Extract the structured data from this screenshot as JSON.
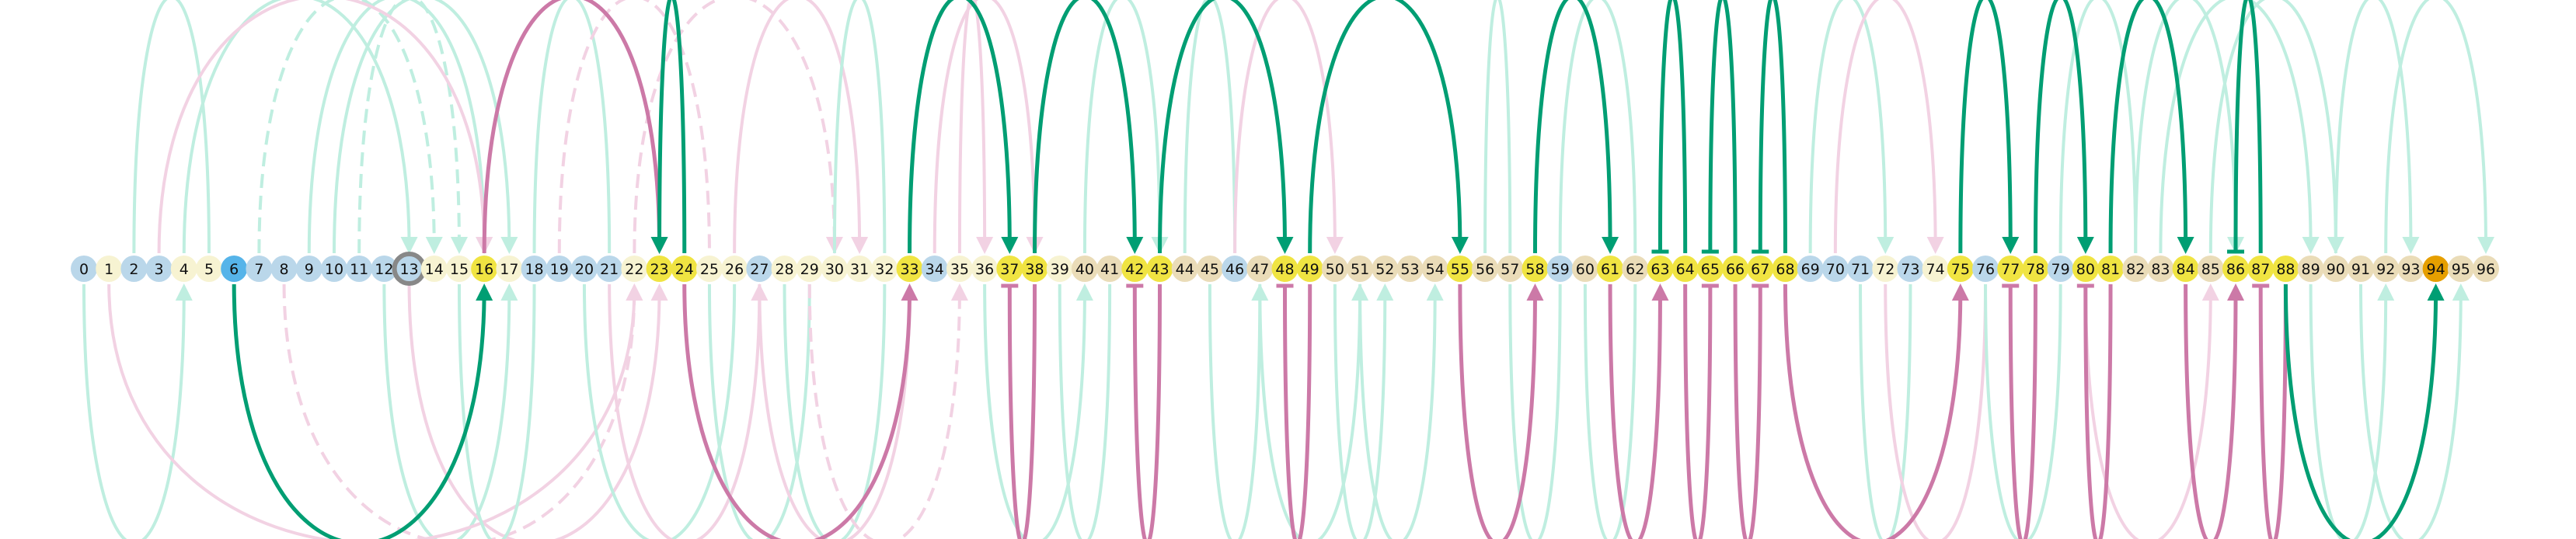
{
  "colors": {
    "node_yellow": "#f0e442",
    "node_light_blue": "#bad7ea",
    "node_pale_yellow": "#f7f3d2",
    "node_tan": "#eadcb8",
    "node_blue": "#56b4e9",
    "node_orange": "#e69f00",
    "ring_gray": "#888888",
    "arc_green": "#009e73",
    "arc_pink": "#cc79a7",
    "arc_green_faint": "#bfeee0",
    "arc_pink_faint": "#f2d2e3"
  },
  "nodes": [
    {
      "label": "0",
      "fill": "node_light_blue"
    },
    {
      "label": "1",
      "fill": "node_pale_yellow"
    },
    {
      "label": "2",
      "fill": "node_light_blue"
    },
    {
      "label": "3",
      "fill": "node_light_blue"
    },
    {
      "label": "4",
      "fill": "node_pale_yellow"
    },
    {
      "label": "5",
      "fill": "node_pale_yellow"
    },
    {
      "label": "6",
      "fill": "node_blue"
    },
    {
      "label": "7",
      "fill": "node_light_blue"
    },
    {
      "label": "8",
      "fill": "node_light_blue"
    },
    {
      "label": "9",
      "fill": "node_light_blue"
    },
    {
      "label": "10",
      "fill": "node_light_blue"
    },
    {
      "label": "11",
      "fill": "node_light_blue"
    },
    {
      "label": "12",
      "fill": "node_light_blue"
    },
    {
      "label": "13",
      "fill": "node_light_blue",
      "ring": true
    },
    {
      "label": "14",
      "fill": "node_pale_yellow"
    },
    {
      "label": "15",
      "fill": "node_pale_yellow"
    },
    {
      "label": "16",
      "fill": "node_yellow"
    },
    {
      "label": "17",
      "fill": "node_pale_yellow"
    },
    {
      "label": "18",
      "fill": "node_light_blue"
    },
    {
      "label": "19",
      "fill": "node_light_blue"
    },
    {
      "label": "20",
      "fill": "node_light_blue"
    },
    {
      "label": "21",
      "fill": "node_light_blue"
    },
    {
      "label": "22",
      "fill": "node_pale_yellow"
    },
    {
      "label": "23",
      "fill": "node_yellow"
    },
    {
      "label": "24",
      "fill": "node_yellow"
    },
    {
      "label": "25",
      "fill": "node_pale_yellow"
    },
    {
      "label": "26",
      "fill": "node_pale_yellow"
    },
    {
      "label": "27",
      "fill": "node_light_blue"
    },
    {
      "label": "28",
      "fill": "node_pale_yellow"
    },
    {
      "label": "29",
      "fill": "node_pale_yellow"
    },
    {
      "label": "30",
      "fill": "node_pale_yellow"
    },
    {
      "label": "31",
      "fill": "node_pale_yellow"
    },
    {
      "label": "32",
      "fill": "node_pale_yellow"
    },
    {
      "label": "33",
      "fill": "node_yellow"
    },
    {
      "label": "34",
      "fill": "node_light_blue"
    },
    {
      "label": "35",
      "fill": "node_pale_yellow"
    },
    {
      "label": "36",
      "fill": "node_pale_yellow"
    },
    {
      "label": "37",
      "fill": "node_yellow"
    },
    {
      "label": "38",
      "fill": "node_yellow"
    },
    {
      "label": "39",
      "fill": "node_pale_yellow"
    },
    {
      "label": "40",
      "fill": "node_tan"
    },
    {
      "label": "41",
      "fill": "node_tan"
    },
    {
      "label": "42",
      "fill": "node_yellow"
    },
    {
      "label": "43",
      "fill": "node_yellow"
    },
    {
      "label": "44",
      "fill": "node_tan"
    },
    {
      "label": "45",
      "fill": "node_tan"
    },
    {
      "label": "46",
      "fill": "node_light_blue"
    },
    {
      "label": "47",
      "fill": "node_tan"
    },
    {
      "label": "48",
      "fill": "node_yellow"
    },
    {
      "label": "49",
      "fill": "node_yellow"
    },
    {
      "label": "50",
      "fill": "node_tan"
    },
    {
      "label": "51",
      "fill": "node_tan"
    },
    {
      "label": "52",
      "fill": "node_tan"
    },
    {
      "label": "53",
      "fill": "node_tan"
    },
    {
      "label": "54",
      "fill": "node_tan"
    },
    {
      "label": "55",
      "fill": "node_yellow"
    },
    {
      "label": "56",
      "fill": "node_tan"
    },
    {
      "label": "57",
      "fill": "node_tan"
    },
    {
      "label": "58",
      "fill": "node_yellow"
    },
    {
      "label": "59",
      "fill": "node_light_blue"
    },
    {
      "label": "60",
      "fill": "node_tan"
    },
    {
      "label": "61",
      "fill": "node_yellow"
    },
    {
      "label": "62",
      "fill": "node_tan"
    },
    {
      "label": "63",
      "fill": "node_yellow"
    },
    {
      "label": "64",
      "fill": "node_yellow"
    },
    {
      "label": "65",
      "fill": "node_yellow"
    },
    {
      "label": "66",
      "fill": "node_yellow"
    },
    {
      "label": "67",
      "fill": "node_yellow"
    },
    {
      "label": "68",
      "fill": "node_yellow"
    },
    {
      "label": "69",
      "fill": "node_light_blue"
    },
    {
      "label": "70",
      "fill": "node_light_blue"
    },
    {
      "label": "71",
      "fill": "node_light_blue"
    },
    {
      "label": "72",
      "fill": "node_pale_yellow"
    },
    {
      "label": "73",
      "fill": "node_light_blue"
    },
    {
      "label": "74",
      "fill": "node_pale_yellow"
    },
    {
      "label": "75",
      "fill": "node_yellow"
    },
    {
      "label": "76",
      "fill": "node_light_blue"
    },
    {
      "label": "77",
      "fill": "node_yellow"
    },
    {
      "label": "78",
      "fill": "node_yellow"
    },
    {
      "label": "79",
      "fill": "node_light_blue"
    },
    {
      "label": "80",
      "fill": "node_yellow"
    },
    {
      "label": "81",
      "fill": "node_yellow"
    },
    {
      "label": "82",
      "fill": "node_tan"
    },
    {
      "label": "83",
      "fill": "node_tan"
    },
    {
      "label": "84",
      "fill": "node_yellow"
    },
    {
      "label": "85",
      "fill": "node_tan"
    },
    {
      "label": "86",
      "fill": "node_yellow"
    },
    {
      "label": "87",
      "fill": "node_yellow"
    },
    {
      "label": "88",
      "fill": "node_yellow"
    },
    {
      "label": "89",
      "fill": "node_tan"
    },
    {
      "label": "90",
      "fill": "node_tan"
    },
    {
      "label": "91",
      "fill": "node_tan"
    },
    {
      "label": "92",
      "fill": "node_tan"
    },
    {
      "label": "93",
      "fill": "node_tan"
    },
    {
      "label": "94",
      "fill": "node_orange"
    },
    {
      "label": "95",
      "fill": "node_tan"
    },
    {
      "label": "96",
      "fill": "node_tan"
    }
  ],
  "arcs": [
    {
      "from": 6,
      "to": 16,
      "side": "below",
      "color": "arc_green",
      "head": "arrow"
    },
    {
      "from": 16,
      "to": 23,
      "side": "above",
      "color": "arc_pink",
      "head": "arrow"
    },
    {
      "from": 24,
      "to": 23,
      "side": "above",
      "color": "arc_green",
      "head": "arrow"
    },
    {
      "from": 24,
      "to": 33,
      "side": "below",
      "color": "arc_pink",
      "head": "arrow"
    },
    {
      "from": 33,
      "to": 37,
      "side": "above",
      "color": "arc_green",
      "head": "arrow"
    },
    {
      "from": 38,
      "to": 37,
      "side": "below",
      "color": "arc_pink",
      "head": "bar"
    },
    {
      "from": 38,
      "to": 42,
      "side": "above",
      "color": "arc_green",
      "head": "arrow"
    },
    {
      "from": 43,
      "to": 42,
      "side": "below",
      "color": "arc_pink",
      "head": "bar"
    },
    {
      "from": 43,
      "to": 48,
      "side": "above",
      "color": "arc_green",
      "head": "arrow"
    },
    {
      "from": 49,
      "to": 48,
      "side": "below",
      "color": "arc_pink",
      "head": "bar"
    },
    {
      "from": 49,
      "to": 55,
      "side": "above",
      "color": "arc_green",
      "head": "arrow"
    },
    {
      "from": 55,
      "to": 58,
      "side": "below",
      "color": "arc_pink",
      "head": "arrow"
    },
    {
      "from": 58,
      "to": 61,
      "side": "above",
      "color": "arc_green",
      "head": "arrow"
    },
    {
      "from": 61,
      "to": 63,
      "side": "below",
      "color": "arc_pink",
      "head": "arrow"
    },
    {
      "from": 64,
      "to": 63,
      "side": "above",
      "color": "arc_green",
      "head": "bar"
    },
    {
      "from": 64,
      "to": 65,
      "side": "below",
      "color": "arc_pink",
      "head": "bar"
    },
    {
      "from": 66,
      "to": 65,
      "side": "above",
      "color": "arc_green",
      "head": "bar"
    },
    {
      "from": 66,
      "to": 67,
      "side": "below",
      "color": "arc_pink",
      "head": "bar"
    },
    {
      "from": 68,
      "to": 67,
      "side": "above",
      "color": "arc_green",
      "head": "bar"
    },
    {
      "from": 68,
      "to": 75,
      "side": "below",
      "color": "arc_pink",
      "head": "arrow"
    },
    {
      "from": 75,
      "to": 77,
      "side": "above",
      "color": "arc_green",
      "head": "arrow"
    },
    {
      "from": 78,
      "to": 77,
      "side": "below",
      "color": "arc_pink",
      "head": "bar"
    },
    {
      "from": 78,
      "to": 80,
      "side": "above",
      "color": "arc_green",
      "head": "arrow"
    },
    {
      "from": 81,
      "to": 80,
      "side": "below",
      "color": "arc_pink",
      "head": "bar"
    },
    {
      "from": 81,
      "to": 84,
      "side": "above",
      "color": "arc_green",
      "head": "arrow"
    },
    {
      "from": 84,
      "to": 86,
      "side": "below",
      "color": "arc_pink",
      "head": "arrow"
    },
    {
      "from": 87,
      "to": 86,
      "side": "above",
      "color": "arc_green",
      "head": "bar"
    },
    {
      "from": 88,
      "to": 87,
      "side": "below",
      "color": "arc_pink",
      "head": "bar"
    },
    {
      "from": 88,
      "to": 94,
      "side": "below",
      "color": "arc_green",
      "head": "arrow"
    },
    {
      "from": 0,
      "to": 4,
      "side": "below",
      "color": "arc_green_faint",
      "head": "arrow"
    },
    {
      "from": 2,
      "to": 5,
      "side": "above",
      "color": "arc_green_faint",
      "head": "none"
    },
    {
      "from": 4,
      "to": 13,
      "side": "above",
      "color": "arc_green_faint",
      "head": "arrow"
    },
    {
      "from": 7,
      "to": 14,
      "side": "above",
      "color": "arc_green_faint",
      "head": "arrow",
      "dash": true
    },
    {
      "from": 9,
      "to": 16,
      "side": "above",
      "color": "arc_green_faint",
      "head": "arrow"
    },
    {
      "from": 10,
      "to": 17,
      "side": "above",
      "color": "arc_green_faint",
      "head": "arrow"
    },
    {
      "from": 11,
      "to": 15,
      "side": "above",
      "color": "arc_green_faint",
      "head": "arrow",
      "dash": true
    },
    {
      "from": 12,
      "to": 17,
      "side": "below",
      "color": "arc_green_faint",
      "head": "arrow"
    },
    {
      "from": 3,
      "to": 16,
      "side": "above",
      "color": "arc_pink_faint",
      "head": "arrow"
    },
    {
      "from": 1,
      "to": 22,
      "side": "below",
      "color": "arc_pink_faint",
      "head": "arrow"
    },
    {
      "from": 8,
      "to": 22,
      "side": "below",
      "color": "arc_pink_faint",
      "head": "arrow",
      "dash": true
    },
    {
      "from": 13,
      "to": 23,
      "side": "below",
      "color": "arc_pink_faint",
      "head": "arrow"
    },
    {
      "from": 15,
      "to": 18,
      "side": "below",
      "color": "arc_green_faint",
      "head": "none"
    },
    {
      "from": 18,
      "to": 21,
      "side": "above",
      "color": "arc_green_faint",
      "head": "none"
    },
    {
      "from": 19,
      "to": 25,
      "side": "above",
      "color": "arc_pink_faint",
      "head": "none",
      "dash": true
    },
    {
      "from": 20,
      "to": 26,
      "side": "below",
      "color": "arc_green_faint",
      "head": "none"
    },
    {
      "from": 21,
      "to": 27,
      "side": "below",
      "color": "arc_pink_faint",
      "head": "arrow"
    },
    {
      "from": 22,
      "to": 30,
      "side": "above",
      "color": "arc_pink_faint",
      "head": "arrow",
      "dash": true
    },
    {
      "from": 25,
      "to": 29,
      "side": "below",
      "color": "arc_green_faint",
      "head": "none"
    },
    {
      "from": 26,
      "to": 31,
      "side": "above",
      "color": "arc_pink_faint",
      "head": "arrow"
    },
    {
      "from": 27,
      "to": 33,
      "side": "below",
      "color": "arc_pink_faint",
      "head": "arrow"
    },
    {
      "from": 28,
      "to": 32,
      "side": "below",
      "color": "arc_green_faint",
      "head": "none"
    },
    {
      "from": 29,
      "to": 35,
      "side": "below",
      "color": "arc_pink_faint",
      "head": "arrow",
      "dash": true
    },
    {
      "from": 30,
      "to": 32,
      "side": "above",
      "color": "arc_green_faint",
      "head": "none"
    },
    {
      "from": 34,
      "to": 38,
      "side": "above",
      "color": "arc_pink_faint",
      "head": "arrow"
    },
    {
      "from": 35,
      "to": 36,
      "side": "above",
      "color": "arc_pink_faint",
      "head": "arrow"
    },
    {
      "from": 36,
      "to": 40,
      "side": "below",
      "color": "arc_green_faint",
      "head": "arrow"
    },
    {
      "from": 39,
      "to": 41,
      "side": "below",
      "color": "arc_green_faint",
      "head": "none"
    },
    {
      "from": 40,
      "to": 43,
      "side": "above",
      "color": "arc_green_faint",
      "head": "arrow"
    },
    {
      "from": 44,
      "to": 46,
      "side": "above",
      "color": "arc_green_faint",
      "head": "none"
    },
    {
      "from": 45,
      "to": 47,
      "side": "below",
      "color": "arc_green_faint",
      "head": "arrow"
    },
    {
      "from": 46,
      "to": 50,
      "side": "above",
      "color": "arc_pink_faint",
      "head": "arrow"
    },
    {
      "from": 47,
      "to": 51,
      "side": "below",
      "color": "arc_green_faint",
      "head": "arrow"
    },
    {
      "from": 50,
      "to": 52,
      "side": "below",
      "color": "arc_green_faint",
      "head": "arrow"
    },
    {
      "from": 51,
      "to": 54,
      "side": "below",
      "color": "arc_green_faint",
      "head": "arrow"
    },
    {
      "from": 56,
      "to": 57,
      "side": "above",
      "color": "arc_green_faint",
      "head": "none"
    },
    {
      "from": 57,
      "to": 59,
      "side": "below",
      "color": "arc_green_faint",
      "head": "none"
    },
    {
      "from": 59,
      "to": 62,
      "side": "above",
      "color": "arc_green_faint",
      "head": "none"
    },
    {
      "from": 60,
      "to": 62,
      "side": "below",
      "color": "arc_green_faint",
      "head": "none"
    },
    {
      "from": 69,
      "to": 72,
      "side": "above",
      "color": "arc_green_faint",
      "head": "arrow"
    },
    {
      "from": 70,
      "to": 74,
      "side": "above",
      "color": "arc_pink_faint",
      "head": "arrow"
    },
    {
      "from": 71,
      "to": 73,
      "side": "below",
      "color": "arc_green_faint",
      "head": "none"
    },
    {
      "from": 72,
      "to": 76,
      "side": "below",
      "color": "arc_pink_faint",
      "head": "none"
    },
    {
      "from": 76,
      "to": 79,
      "side": "below",
      "color": "arc_green_faint",
      "head": "none"
    },
    {
      "from": 79,
      "to": 82,
      "side": "above",
      "color": "arc_green_faint",
      "head": "none"
    },
    {
      "from": 80,
      "to": 85,
      "side": "below",
      "color": "arc_pink_faint",
      "head": "arrow"
    },
    {
      "from": 82,
      "to": 86,
      "side": "above",
      "color": "arc_green_faint",
      "head": "arrow"
    },
    {
      "from": 83,
      "to": 89,
      "side": "above",
      "color": "arc_green_faint",
      "head": "arrow"
    },
    {
      "from": 85,
      "to": 90,
      "side": "above",
      "color": "arc_green_faint",
      "head": "arrow"
    },
    {
      "from": 89,
      "to": 92,
      "side": "below",
      "color": "arc_green_faint",
      "head": "arrow"
    },
    {
      "from": 90,
      "to": 93,
      "side": "above",
      "color": "arc_green_faint",
      "head": "arrow"
    },
    {
      "from": 91,
      "to": 95,
      "side": "below",
      "color": "arc_green_faint",
      "head": "arrow"
    },
    {
      "from": 92,
      "to": 96,
      "side": "above",
      "color": "arc_green_faint",
      "head": "arrow"
    }
  ]
}
